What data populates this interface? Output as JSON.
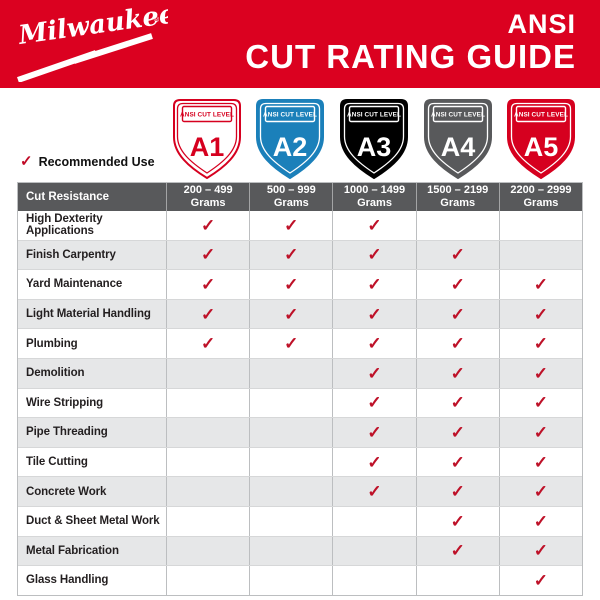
{
  "banner": {
    "logo_text": "Milwaukee",
    "logo_reg_mark": "®",
    "title_line1": "ANSI",
    "title_line2": "CUT RATING GUIDE"
  },
  "badges": [
    {
      "level": "A1",
      "label": "ANSI CUT LEVEL",
      "fill": "#FFFFFF",
      "stroke": "#D6001F",
      "accent": "#D6001F"
    },
    {
      "level": "A2",
      "label": "ANSI CUT LEVEL",
      "fill": "#1B80BA",
      "stroke": "#1B80BA",
      "accent": "#FFFFFF"
    },
    {
      "level": "A3",
      "label": "ANSI CUT LEVEL",
      "fill": "#000000",
      "stroke": "#000000",
      "accent": "#FFFFFF"
    },
    {
      "level": "A4",
      "label": "ANSI CUT LEVEL",
      "fill": "#58595B",
      "stroke": "#58595B",
      "accent": "#FFFFFF"
    },
    {
      "level": "A5",
      "label": "ANSI CUT LEVEL",
      "fill": "#D6001F",
      "stroke": "#D6001F",
      "accent": "#FFFFFF"
    }
  ],
  "recommended": {
    "check_glyph": "✓",
    "label": "Recommended Use"
  },
  "table": {
    "check_glyph": "✓",
    "header": {
      "label": "Cut Resistance",
      "columns": [
        {
          "range": "200 – 499",
          "unit": "Grams"
        },
        {
          "range": "500 – 999",
          "unit": "Grams"
        },
        {
          "range": "1000 – 1499",
          "unit": "Grams"
        },
        {
          "range": "1500 – 2199",
          "unit": "Grams"
        },
        {
          "range": "2200 – 2999",
          "unit": "Grams"
        }
      ]
    },
    "rows": [
      {
        "label": "High Dexterity Applications",
        "checks": [
          true,
          true,
          true,
          false,
          false
        ]
      },
      {
        "label": "Finish Carpentry",
        "checks": [
          true,
          true,
          true,
          true,
          false
        ]
      },
      {
        "label": "Yard Maintenance",
        "checks": [
          true,
          true,
          true,
          true,
          true
        ]
      },
      {
        "label": "Light Material Handling",
        "checks": [
          true,
          true,
          true,
          true,
          true
        ]
      },
      {
        "label": "Plumbing",
        "checks": [
          true,
          true,
          true,
          true,
          true
        ]
      },
      {
        "label": "Demolition",
        "checks": [
          false,
          false,
          true,
          true,
          true
        ]
      },
      {
        "label": "Wire Stripping",
        "checks": [
          false,
          false,
          true,
          true,
          true
        ]
      },
      {
        "label": "Pipe Threading",
        "checks": [
          false,
          false,
          true,
          true,
          true
        ]
      },
      {
        "label": "Tile Cutting",
        "checks": [
          false,
          false,
          true,
          true,
          true
        ]
      },
      {
        "label": "Concrete Work",
        "checks": [
          false,
          false,
          true,
          true,
          true
        ]
      },
      {
        "label": "Duct & Sheet Metal Work",
        "checks": [
          false,
          false,
          false,
          true,
          true
        ]
      },
      {
        "label": "Metal Fabrication",
        "checks": [
          false,
          false,
          false,
          true,
          true
        ]
      },
      {
        "label": "Glass Handling",
        "checks": [
          false,
          false,
          false,
          false,
          true
        ]
      }
    ]
  },
  "colors": {
    "milwaukee_red": "#DB0120",
    "check_red": "#BE1128",
    "level_blue": "#1B80BA",
    "level_black": "#000000",
    "level_gray": "#58595B",
    "header_gray": "#58595B",
    "alt_row_gray": "#E6E7E8",
    "grid_border": "#BCBEC0"
  },
  "chart_data": {
    "type": "table",
    "title": "ANSI CUT RATING GUIDE",
    "row_header": "Cut Resistance",
    "columns": [
      {
        "level": "A1",
        "grams": "200 – 499"
      },
      {
        "level": "A2",
        "grams": "500 – 999"
      },
      {
        "level": "A3",
        "grams": "1000 – 1499"
      },
      {
        "level": "A4",
        "grams": "1500 – 2199"
      },
      {
        "level": "A5",
        "grams": "2200 – 2999"
      }
    ],
    "rows": [
      {
        "application": "High Dexterity Applications",
        "recommended_levels": [
          "A1",
          "A2",
          "A3"
        ]
      },
      {
        "application": "Finish Carpentry",
        "recommended_levels": [
          "A1",
          "A2",
          "A3",
          "A4"
        ]
      },
      {
        "application": "Yard Maintenance",
        "recommended_levels": [
          "A1",
          "A2",
          "A3",
          "A4",
          "A5"
        ]
      },
      {
        "application": "Light Material Handling",
        "recommended_levels": [
          "A1",
          "A2",
          "A3",
          "A4",
          "A5"
        ]
      },
      {
        "application": "Plumbing",
        "recommended_levels": [
          "A1",
          "A2",
          "A3",
          "A4",
          "A5"
        ]
      },
      {
        "application": "Demolition",
        "recommended_levels": [
          "A3",
          "A4",
          "A5"
        ]
      },
      {
        "application": "Wire Stripping",
        "recommended_levels": [
          "A3",
          "A4",
          "A5"
        ]
      },
      {
        "application": "Pipe Threading",
        "recommended_levels": [
          "A3",
          "A4",
          "A5"
        ]
      },
      {
        "application": "Tile Cutting",
        "recommended_levels": [
          "A3",
          "A4",
          "A5"
        ]
      },
      {
        "application": "Concrete Work",
        "recommended_levels": [
          "A3",
          "A4",
          "A5"
        ]
      },
      {
        "application": "Duct & Sheet Metal Work",
        "recommended_levels": [
          "A4",
          "A5"
        ]
      },
      {
        "application": "Metal Fabrication",
        "recommended_levels": [
          "A4",
          "A5"
        ]
      },
      {
        "application": "Glass Handling",
        "recommended_levels": [
          "A5"
        ]
      }
    ]
  }
}
